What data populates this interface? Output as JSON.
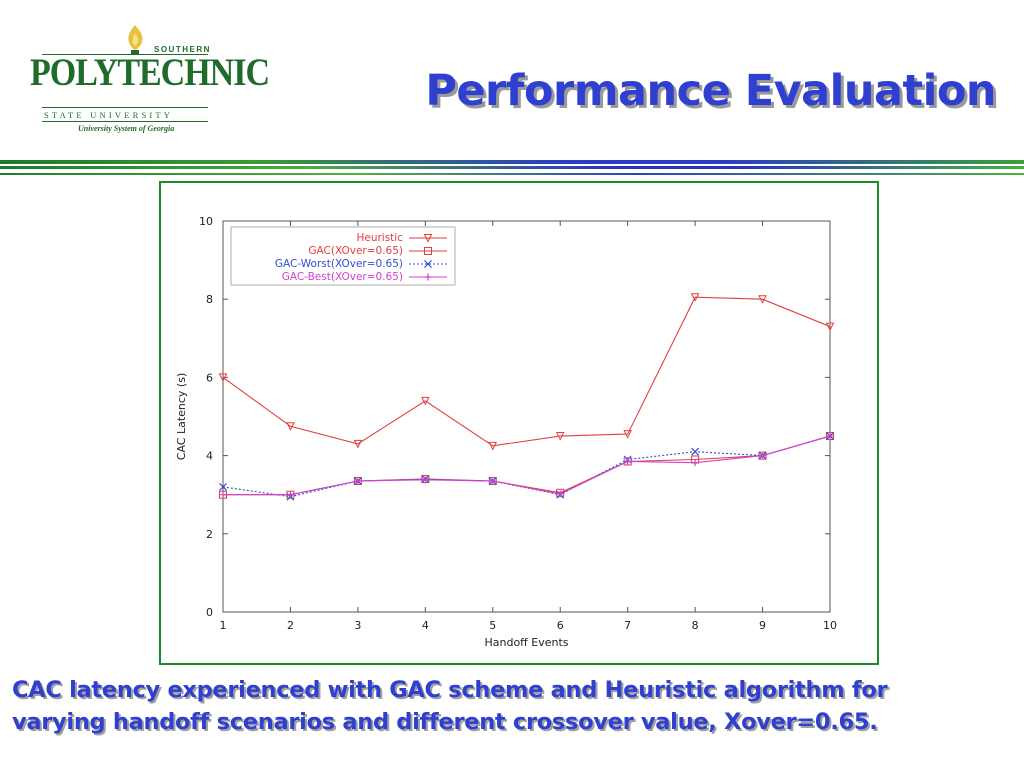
{
  "logo": {
    "southern": "SOUTHERN",
    "name": "POLYTECHNIC",
    "state_university": "STATE UNIVERSITY",
    "system": "University System of Georgia",
    "icon": "flame-icon"
  },
  "slide": {
    "title": "Performance Evaluation",
    "caption_line1": "CAC latency experienced with GAC scheme and Heuristic algorithm for",
    "caption_line2": "varying handoff scenarios and different crossover value, Xover=0.65."
  },
  "colors": {
    "title": "#2f3fd0",
    "green": "#1f6b2a",
    "frame": "#1f8a2a"
  },
  "chart_data": {
    "type": "line",
    "title": "",
    "xlabel": "Handoff Events",
    "ylabel": "CAC Latency (s)",
    "x": [
      1,
      2,
      3,
      4,
      5,
      6,
      7,
      8,
      9,
      10
    ],
    "xlim": [
      1,
      10
    ],
    "ylim": [
      0,
      10
    ],
    "x_ticks": [
      "1",
      "2",
      "3",
      "4",
      "5",
      "6",
      "7",
      "8",
      "9",
      "10"
    ],
    "y_ticks": [
      "0",
      "2",
      "4",
      "6",
      "8",
      "10"
    ],
    "grid": false,
    "legend_position": "top-left",
    "series": [
      {
        "name": "Heuristic",
        "color": "#e04040",
        "dash": "solid",
        "marker": "triangle-down",
        "values": [
          6.0,
          4.75,
          4.3,
          5.4,
          4.25,
          4.5,
          4.55,
          8.05,
          8.0,
          7.3
        ]
      },
      {
        "name": "GAC(XOver=0.65)",
        "color": "#e04040",
        "dash": "solid",
        "marker": "square",
        "values": [
          3.0,
          3.0,
          3.35,
          3.4,
          3.35,
          3.05,
          3.85,
          3.9,
          4.0,
          4.5
        ]
      },
      {
        "name": "GAC-Worst(XOver=0.65)",
        "color": "#3050d0",
        "dash": "dotted",
        "marker": "x",
        "values": [
          3.2,
          2.95,
          3.35,
          3.4,
          3.35,
          3.0,
          3.9,
          4.1,
          4.0,
          4.5
        ]
      },
      {
        "name": "GAC-Best(XOver=0.65)",
        "color": "#d040d0",
        "dash": "solid",
        "marker": "plus",
        "values": [
          3.0,
          3.0,
          3.35,
          3.38,
          3.35,
          3.02,
          3.85,
          3.82,
          4.0,
          4.5
        ]
      }
    ]
  }
}
